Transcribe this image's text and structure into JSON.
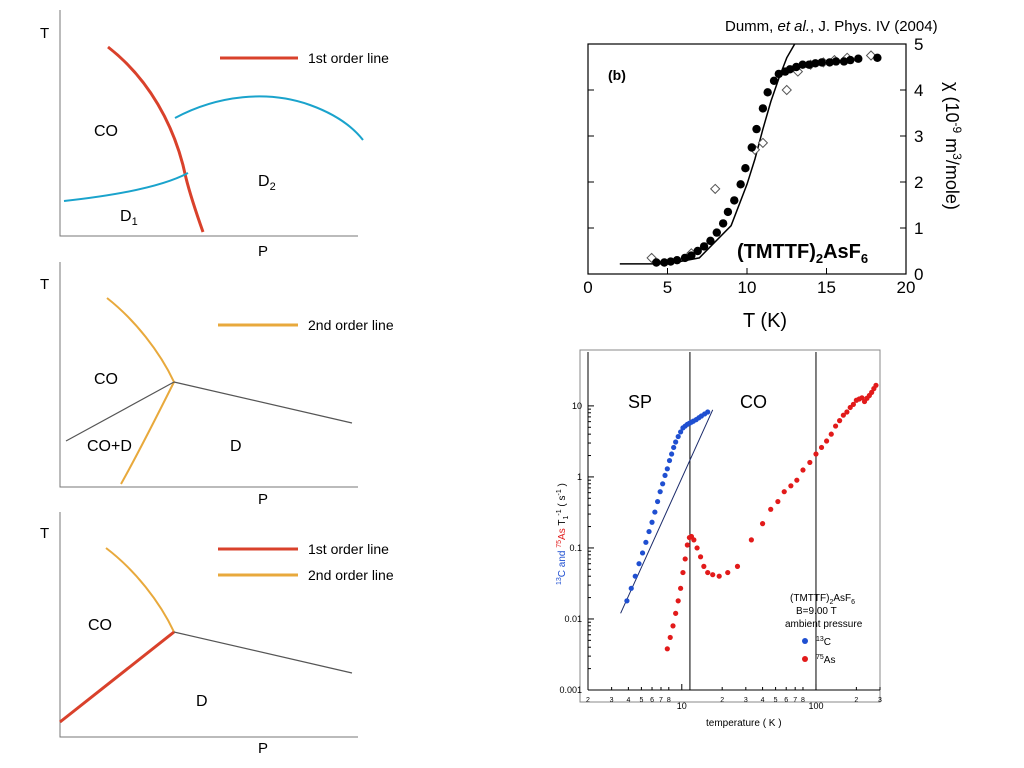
{
  "colors": {
    "first_order": "#d9412b",
    "second_order": "#e8a93c",
    "crossover": "#1aa3cc",
    "black_line": "#333333",
    "nmr_c": "#1f4fd1",
    "nmr_as": "#e21a1a"
  },
  "phase_diagrams": [
    {
      "xlabel": "P",
      "ylabel": "T",
      "legend": [
        {
          "label": "1st order line",
          "color": "#d9412b"
        }
      ],
      "regions": {
        "co": "CO",
        "d1": "D",
        "d1_sub": "1",
        "d2": "D",
        "d2_sub": "2"
      }
    },
    {
      "xlabel": "P",
      "ylabel": "T",
      "legend": [
        {
          "label": "2nd order line",
          "color": "#e8a93c"
        }
      ],
      "regions": {
        "co": "CO",
        "cod": "CO+D",
        "d": "D"
      }
    },
    {
      "xlabel": "P",
      "ylabel": "T",
      "legend": [
        {
          "label": "1st order line",
          "color": "#d9412b"
        },
        {
          "label": "2nd order line",
          "color": "#e8a93c"
        }
      ],
      "regions": {
        "co": "CO",
        "d": "D"
      }
    }
  ],
  "citation": {
    "prefix": "Dumm, ",
    "italic": "et al.",
    "suffix": ", J. Phys. IV (2004)"
  },
  "chart_data": [
    {
      "type": "scatter",
      "panel_label": "(b)",
      "xlabel": "T (K)",
      "ylabel_parts": {
        "chi": "χ (10",
        "exp": "-9",
        "mid": " m",
        "exp2": "3",
        "end": "/mole)"
      },
      "compound": {
        "main": "(TMTTF)",
        "sub": "2",
        "rest": "AsF",
        "sub2": "6"
      },
      "xlim": [
        0,
        20
      ],
      "ylim": [
        0,
        5
      ],
      "xticks": [
        0,
        5,
        10,
        15,
        20
      ],
      "yticks": [
        0,
        1,
        2,
        3,
        4,
        5
      ],
      "series": [
        {
          "marker": "filled-circle",
          "x": [
            4.3,
            4.8,
            5.2,
            5.6,
            6.1,
            6.5,
            6.9,
            7.3,
            7.7,
            8.1,
            8.5,
            8.8,
            9.2,
            9.6,
            9.9,
            10.3,
            10.6,
            11.0,
            11.3,
            11.7,
            12.0,
            12.4,
            12.7,
            13.1,
            13.5,
            13.9,
            14.3,
            14.7,
            15.2,
            15.6,
            16.1,
            16.5,
            17.0,
            18.2
          ],
          "y": [
            0.25,
            0.25,
            0.27,
            0.3,
            0.35,
            0.4,
            0.5,
            0.6,
            0.72,
            0.9,
            1.1,
            1.35,
            1.6,
            1.95,
            2.3,
            2.75,
            3.15,
            3.6,
            3.95,
            4.2,
            4.35,
            4.4,
            4.45,
            4.5,
            4.55,
            4.55,
            4.58,
            4.6,
            4.6,
            4.62,
            4.62,
            4.65,
            4.68,
            4.7
          ]
        },
        {
          "marker": "open-diamond",
          "x": [
            4.0,
            6.5,
            8.0,
            10.5,
            11.0,
            12.5,
            13.2,
            14.0,
            14.8,
            15.5,
            16.3,
            17.8
          ],
          "y": [
            0.35,
            0.45,
            1.85,
            2.7,
            2.85,
            4.0,
            4.4,
            4.55,
            4.6,
            4.65,
            4.7,
            4.75
          ]
        }
      ],
      "fit_line": {
        "x": [
          2,
          5,
          7,
          9,
          10,
          10.5,
          11,
          11.5,
          12,
          12.5,
          13
        ],
        "y": [
          0.22,
          0.22,
          0.35,
          1.05,
          1.95,
          2.5,
          3.15,
          3.75,
          4.25,
          4.7,
          5.1
        ]
      }
    },
    {
      "type": "scatter",
      "scale": "log-log",
      "xlabel": "temperature ( K )",
      "ylabel_parts": {
        "c_sup": "13",
        "c": "C and ",
        "as_sup": "75",
        "as": "As ",
        "t": "T",
        "t_sub": "1",
        "t_sup": "-1",
        "unit": " ( s",
        "unit_sup": "-1",
        "close": " )"
      },
      "xlim": [
        2,
        300
      ],
      "ylim": [
        0.001,
        30
      ],
      "xticks_major": [
        10,
        100
      ],
      "xtick_major_labels": [
        "10",
        "100"
      ],
      "xticks_minor": [
        2,
        3,
        4,
        5,
        6,
        7,
        8,
        20,
        30,
        40,
        50,
        60,
        70,
        80,
        200,
        300
      ],
      "xtick_minor_labels": [
        "2",
        "3",
        "4",
        "5",
        "6",
        "7",
        "8",
        "2",
        "3",
        "4",
        "5",
        "6",
        "7",
        "8",
        "2",
        "3"
      ],
      "yticks": [
        0.001,
        0.01,
        0.1,
        1,
        10
      ],
      "ytick_labels": [
        "0.001",
        "0.01",
        "0.1",
        "1",
        "10"
      ],
      "phase_labels": [
        {
          "text": "SP"
        },
        {
          "text": "CO"
        }
      ],
      "vlines": [
        11.5,
        100
      ],
      "legend_title": "(TMTTF)",
      "legend_title_sub": "2",
      "legend_title_rest": "AsF",
      "legend_title_sub2": "6",
      "legend_field": "B=9.00 T",
      "legend_pressure": "ambient pressure",
      "series": [
        {
          "name_sup": "13",
          "name": "C",
          "color": "#1f4fd1",
          "x": [
            3.9,
            4.2,
            4.5,
            4.8,
            5.1,
            5.4,
            5.7,
            6.0,
            6.3,
            6.6,
            6.9,
            7.2,
            7.5,
            7.8,
            8.1,
            8.4,
            8.7,
            9.0,
            9.4,
            9.8,
            10.2,
            10.6,
            11.0,
            11.4,
            11.8,
            12.2,
            12.8,
            13.4,
            14.0,
            14.8,
            15.6
          ],
          "y": [
            0.018,
            0.027,
            0.04,
            0.06,
            0.085,
            0.12,
            0.17,
            0.23,
            0.32,
            0.45,
            0.62,
            0.8,
            1.05,
            1.3,
            1.7,
            2.1,
            2.6,
            3.1,
            3.7,
            4.3,
            4.9,
            5.2,
            5.5,
            5.7,
            5.9,
            6.1,
            6.4,
            6.8,
            7.2,
            7.7,
            8.2
          ]
        },
        {
          "name_sup": "75",
          "name": "As",
          "color": "#e21a1a",
          "x": [
            7.8,
            8.2,
            8.6,
            9.0,
            9.4,
            9.8,
            10.2,
            10.6,
            11.0,
            11.4,
            11.8,
            12.3,
            13.0,
            13.8,
            14.6,
            15.6,
            17.0,
            19.0,
            22.0,
            26.0,
            33.0,
            40.0,
            46.0,
            52.0,
            58.0,
            65.0,
            72.0,
            80.0,
            90.0,
            100,
            110,
            120,
            130,
            140,
            150,
            160,
            170,
            180,
            190,
            200,
            210,
            220,
            230,
            240,
            250,
            260,
            270,
            280
          ],
          "y": [
            0.0038,
            0.0055,
            0.008,
            0.012,
            0.018,
            0.027,
            0.045,
            0.07,
            0.11,
            0.14,
            0.145,
            0.13,
            0.1,
            0.075,
            0.055,
            0.045,
            0.042,
            0.04,
            0.045,
            0.055,
            0.13,
            0.22,
            0.35,
            0.45,
            0.62,
            0.75,
            0.9,
            1.25,
            1.6,
            2.1,
            2.6,
            3.2,
            4.0,
            5.2,
            6.2,
            7.4,
            8.2,
            9.5,
            10.5,
            12.0,
            12.5,
            13.0,
            11.5,
            12.8,
            14.0,
            15.5,
            17.5,
            19.5
          ]
        }
      ],
      "fit_segments": [
        {
          "x": [
            3.5,
            17
          ],
          "y": [
            0.012,
            8.8
          ]
        }
      ]
    }
  ]
}
